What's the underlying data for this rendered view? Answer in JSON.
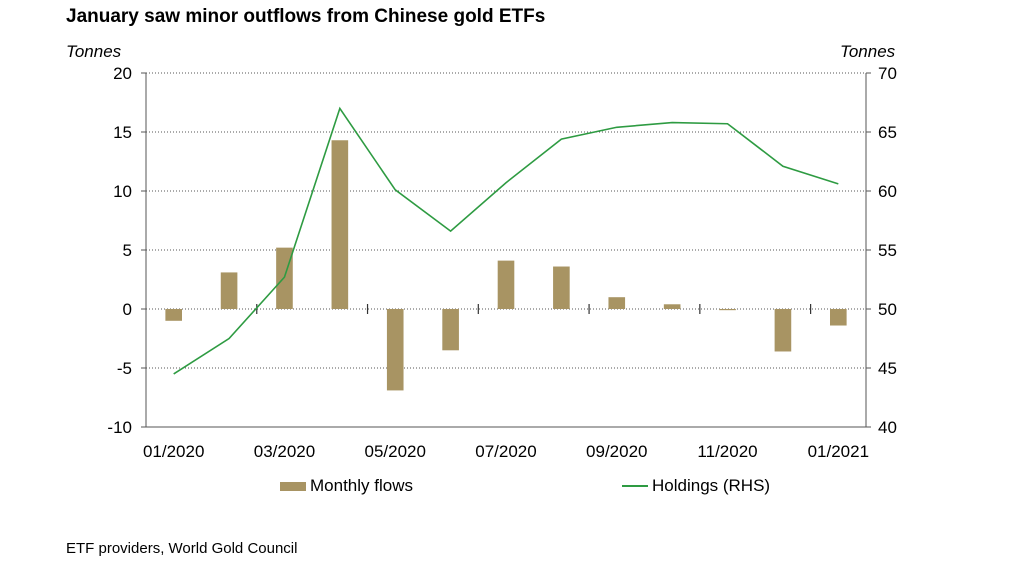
{
  "chart_data": {
    "type": "bar+line",
    "title": "January saw minor outflows from Chinese gold ETFs",
    "left_axis_label": "Tonnes",
    "right_axis_label": "Tonnes",
    "left_ylim": [
      -10,
      20
    ],
    "left_ticks": [
      20,
      15,
      10,
      5,
      0,
      -5,
      -10
    ],
    "right_ylim": [
      40,
      70
    ],
    "right_ticks": [
      70,
      65,
      60,
      55,
      50,
      45,
      40
    ],
    "categories": [
      "01/2020",
      "02/2020",
      "03/2020",
      "04/2020",
      "05/2020",
      "06/2020",
      "07/2020",
      "08/2020",
      "09/2020",
      "10/2020",
      "11/2020",
      "12/2020",
      "01/2021"
    ],
    "x_tick_labels": [
      "01/2020",
      "03/2020",
      "05/2020",
      "07/2020",
      "09/2020",
      "11/2020",
      "01/2021"
    ],
    "series": [
      {
        "name": "Monthly flows",
        "type": "bar",
        "axis": "left",
        "color": "#a89463",
        "values": [
          -1.0,
          3.1,
          5.2,
          14.3,
          -6.9,
          -3.5,
          4.1,
          3.6,
          1.0,
          0.4,
          -0.1,
          -3.6,
          -1.4
        ]
      },
      {
        "name": "Holdings (RHS)",
        "type": "line",
        "axis": "right",
        "color": "#2e9b42",
        "values": [
          44.5,
          47.5,
          52.7,
          67.0,
          60.1,
          56.6,
          60.7,
          64.4,
          65.4,
          65.8,
          65.7,
          62.1,
          60.6
        ]
      }
    ],
    "grid": "horizontal dotted",
    "legend_position": "bottom"
  },
  "source": "ETF providers, World Gold Council"
}
